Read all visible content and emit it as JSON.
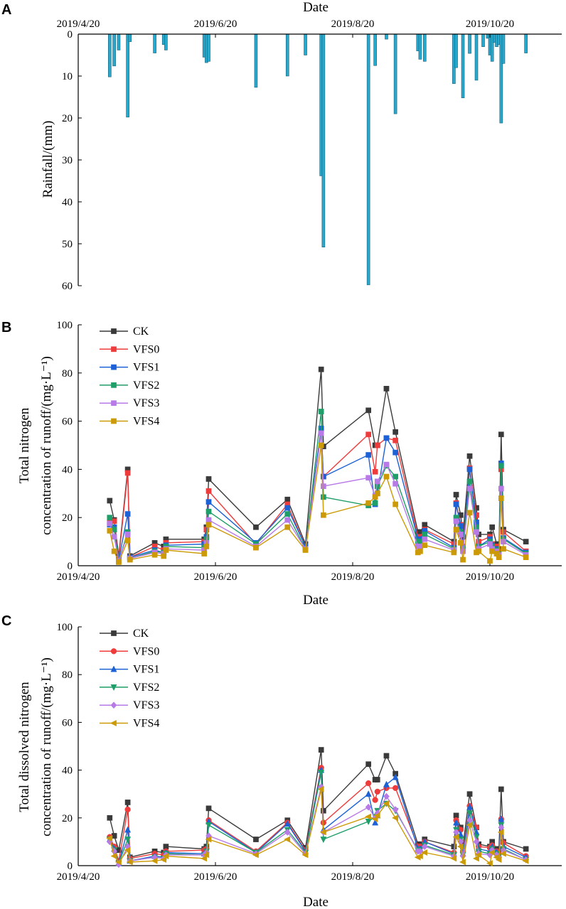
{
  "colors": {
    "CK": "#3a3a3a",
    "VFS0": "#ee3b3b",
    "VFS1": "#1c62d6",
    "VFS2": "#1e9e68",
    "VFS3": "#b77ae6",
    "VFS4": "#cc9a06",
    "rain": "#26a9cc"
  },
  "chart_data": [
    {
      "panel": "A",
      "type": "bar",
      "title": "",
      "xlabel": "Date",
      "ylabel": "Rainfall/(mm)",
      "x_axis_position": "top",
      "y_inverted": true,
      "ylim": [
        0,
        60
      ],
      "yticks": [
        0,
        10,
        20,
        30,
        40,
        50,
        60
      ],
      "x_ticks": [
        "2019/4/20",
        "2019/6/20",
        "2019/8/20",
        "2019/10/20"
      ],
      "x_tick_days": [
        0,
        61,
        122,
        183
      ],
      "bars": [
        {
          "day": 14,
          "value": 10.2
        },
        {
          "day": 16,
          "value": 7.6
        },
        {
          "day": 18,
          "value": 3.8
        },
        {
          "day": 22,
          "value": 19.8
        },
        {
          "day": 23,
          "value": 1.8
        },
        {
          "day": 34,
          "value": 4.5
        },
        {
          "day": 38,
          "value": 2.5
        },
        {
          "day": 39,
          "value": 3.8
        },
        {
          "day": 56,
          "value": 5.5
        },
        {
          "day": 57,
          "value": 6.8
        },
        {
          "day": 58,
          "value": 6.5
        },
        {
          "day": 79,
          "value": 12.7
        },
        {
          "day": 93,
          "value": 10.0
        },
        {
          "day": 101,
          "value": 5.0
        },
        {
          "day": 108,
          "value": 33.8
        },
        {
          "day": 109,
          "value": 50.8
        },
        {
          "day": 129,
          "value": 59.8
        },
        {
          "day": 132,
          "value": 7.5
        },
        {
          "day": 137,
          "value": 1.2
        },
        {
          "day": 141,
          "value": 19.0
        },
        {
          "day": 151,
          "value": 4.0
        },
        {
          "day": 152,
          "value": 6.0
        },
        {
          "day": 154,
          "value": 6.5
        },
        {
          "day": 167,
          "value": 11.8
        },
        {
          "day": 168,
          "value": 8.0
        },
        {
          "day": 171,
          "value": 15.2
        },
        {
          "day": 174,
          "value": 4.6
        },
        {
          "day": 177,
          "value": 11.0
        },
        {
          "day": 180,
          "value": 3.0
        },
        {
          "day": 182,
          "value": 1.0
        },
        {
          "day": 183,
          "value": 5.0
        },
        {
          "day": 184,
          "value": 6.5
        },
        {
          "day": 185,
          "value": 2.0
        },
        {
          "day": 186,
          "value": 3.0
        },
        {
          "day": 187,
          "value": 2.5
        },
        {
          "day": 188,
          "value": 21.2
        },
        {
          "day": 189,
          "value": 7.0
        },
        {
          "day": 199,
          "value": 4.5
        }
      ]
    },
    {
      "panel": "B",
      "type": "line",
      "xlabel": "Date",
      "ylabel": [
        "Total nitrogen",
        "concentration of runoff/(mg·L⁻¹)"
      ],
      "ylim": [
        0,
        100
      ],
      "yticks": [
        0,
        20,
        40,
        60,
        80,
        100
      ],
      "x_ticks": [
        "2019/4/20",
        "2019/6/20",
        "2019/8/20",
        "2019/10/20"
      ],
      "x_tick_days": [
        0,
        61,
        122,
        183
      ],
      "marker": "square",
      "x": [
        14,
        16,
        18,
        22,
        23,
        34,
        38,
        39,
        56,
        57,
        58,
        79,
        93,
        101,
        108,
        109,
        129,
        132,
        133,
        137,
        141,
        151,
        152,
        154,
        167,
        168,
        170,
        171,
        174,
        177,
        178,
        183,
        184,
        186,
        187,
        188,
        189,
        199
      ],
      "series": [
        {
          "name": "CK",
          "values": [
            27,
            19,
            4,
            40,
            4,
            9.5,
            8,
            11,
            11,
            16,
            36,
            16,
            27.5,
            9,
            81.5,
            49.5,
            64.5,
            50,
            50,
            73.5,
            55.5,
            14,
            14,
            17,
            10,
            29.5,
            21,
            12,
            45.5,
            24,
            13,
            13,
            16,
            9,
            7,
            54.5,
            15,
            10
          ]
        },
        {
          "name": "VFS0",
          "values": [
            18,
            18.5,
            3,
            38.5,
            3.5,
            8,
            6.5,
            9.5,
            10,
            15,
            31,
            9,
            25.5,
            8,
            56.5,
            37,
            54.5,
            39,
            50,
            53,
            52,
            12,
            12,
            15,
            9,
            26,
            17,
            8,
            40.5,
            21,
            10,
            12,
            9,
            8,
            6,
            40,
            14,
            6
          ]
        },
        {
          "name": "VFS1",
          "values": [
            17,
            16,
            2.5,
            21.5,
            3.5,
            6.5,
            5.5,
            8.5,
            9,
            12,
            26.5,
            9.5,
            24,
            8,
            57,
            37,
            46,
            25.5,
            30,
            53,
            47,
            11,
            11,
            14.5,
            7.5,
            25.5,
            16.5,
            7.5,
            40,
            18,
            8,
            11,
            8.5,
            7,
            5,
            42.5,
            11.5,
            5.5
          ]
        },
        {
          "name": "VFS2",
          "values": [
            20,
            15,
            2,
            14,
            3,
            6,
            5.5,
            8,
            7.5,
            11,
            22.5,
            9,
            21.5,
            7,
            64,
            28.5,
            25,
            26,
            33,
            41.5,
            37,
            10,
            10,
            13,
            7,
            20,
            14,
            7,
            35,
            16,
            8,
            10,
            8,
            6.5,
            5,
            41.5,
            11,
            5
          ]
        },
        {
          "name": "VFS3",
          "values": [
            17.5,
            12,
            2,
            13,
            3,
            5.5,
            5,
            7,
            6.5,
            9.5,
            19,
            8,
            19,
            7,
            55,
            33,
            36.5,
            29,
            35,
            42,
            34,
            8,
            8,
            11,
            6.5,
            18.5,
            13,
            6,
            32,
            14,
            7,
            9,
            7,
            6,
            4.5,
            32,
            10,
            4.5
          ]
        },
        {
          "name": "VFS4",
          "values": [
            14.5,
            6,
            1.5,
            10.5,
            2.5,
            4.5,
            4,
            6.5,
            5,
            8,
            17,
            7.5,
            16,
            6.5,
            50,
            21,
            26,
            28.5,
            30,
            37,
            25.5,
            5.5,
            6,
            8.5,
            5.5,
            15,
            9.5,
            2.5,
            22,
            5.5,
            6,
            2,
            6,
            5,
            3.5,
            28,
            7,
            3.5
          ]
        }
      ]
    },
    {
      "panel": "C",
      "type": "line",
      "xlabel": "Date",
      "ylabel": [
        "Total dissolved nitrogen",
        "concentration of runoff/(mg·L⁻¹)"
      ],
      "ylim": [
        0,
        100
      ],
      "yticks": [
        0,
        20,
        40,
        60,
        80,
        100
      ],
      "x_ticks": [
        "2019/4/20",
        "2019/6/20",
        "2019/8/20",
        "2019/10/20"
      ],
      "x_tick_days": [
        0,
        61,
        122,
        183
      ],
      "markers": {
        "CK": "square",
        "VFS0": "circle",
        "VFS1": "triangle-up",
        "VFS2": "triangle-down",
        "VFS3": "diamond",
        "VFS4": "triangle-left"
      },
      "x": [
        14,
        16,
        18,
        22,
        23,
        34,
        38,
        39,
        56,
        57,
        58,
        79,
        93,
        101,
        108,
        109,
        129,
        132,
        133,
        137,
        141,
        151,
        152,
        154,
        167,
        168,
        170,
        171,
        174,
        177,
        178,
        183,
        184,
        186,
        187,
        188,
        189,
        199
      ],
      "series": [
        {
          "name": "CK",
          "values": [
            20,
            12.5,
            6.5,
            26.5,
            3.5,
            6,
            5.5,
            8,
            7,
            8,
            24,
            11,
            19,
            7.5,
            48.5,
            23,
            42.5,
            36,
            36,
            46,
            38.5,
            9,
            9,
            11,
            8,
            21,
            16,
            8,
            30,
            16,
            9,
            8,
            10,
            7,
            7,
            32,
            10,
            7
          ]
        },
        {
          "name": "VFS0",
          "values": [
            12,
            8,
            2,
            23.5,
            3,
            5,
            4.5,
            6,
            6.5,
            7,
            19,
            6,
            18,
            6.5,
            41,
            18,
            34.5,
            27.5,
            31,
            32.5,
            32.5,
            8,
            8,
            10,
            5.5,
            19,
            15,
            6,
            25,
            16,
            8,
            7.5,
            8.5,
            6,
            5,
            19.5,
            9.5,
            4
          ]
        },
        {
          "name": "VFS1",
          "values": [
            11,
            7,
            1,
            15,
            2,
            4,
            3.5,
            5.5,
            5,
            6.5,
            18.5,
            5.5,
            17.5,
            6,
            40,
            15,
            30,
            18,
            21,
            34,
            37,
            7,
            7,
            10,
            5,
            18,
            13,
            5,
            24.5,
            14,
            7,
            6,
            8,
            5.5,
            4.5,
            19.5,
            8,
            3.5
          ]
        },
        {
          "name": "VFS2",
          "values": [
            11,
            6.5,
            1,
            11,
            2,
            3.5,
            3,
            5,
            4.5,
            6,
            17,
            5.5,
            15,
            5.5,
            39,
            11,
            18.5,
            20.5,
            23,
            26,
            23,
            6.5,
            6.5,
            8.5,
            4.5,
            15,
            11,
            4.5,
            22,
            12,
            6,
            5,
            7,
            5,
            4,
            17,
            7,
            2.5
          ]
        },
        {
          "name": "VFS3",
          "values": [
            10,
            6,
            0.5,
            8,
            2,
            3.5,
            3,
            4.5,
            4.5,
            5.5,
            12.5,
            5,
            14,
            5,
            33,
            14,
            24.5,
            20,
            22,
            29,
            23.5,
            6,
            6,
            8,
            4,
            14,
            10,
            4,
            19,
            10,
            5,
            4.5,
            6.5,
            4.5,
            3.5,
            16,
            6.5,
            2.5
          ]
        },
        {
          "name": "VFS4",
          "values": [
            11.5,
            4,
            1.5,
            6.5,
            1.5,
            2,
            2.5,
            4,
            3,
            4.5,
            11,
            4.5,
            11,
            4.5,
            32,
            14,
            20.5,
            19.5,
            21,
            26,
            20,
            3.5,
            4,
            5.5,
            3,
            12,
            8,
            1.5,
            17,
            3,
            4.5,
            1,
            5.5,
            3.5,
            2.5,
            14,
            5,
            2
          ]
        }
      ]
    }
  ]
}
